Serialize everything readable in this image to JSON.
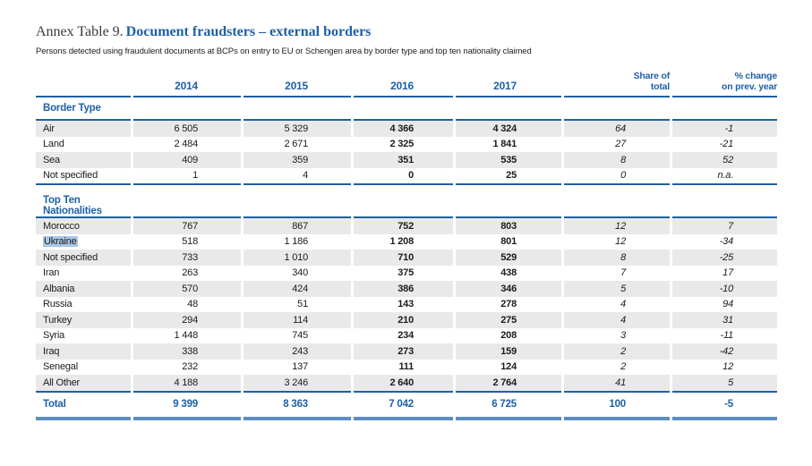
{
  "header": {
    "title_prefix": "Annex Table 9.",
    "title": "Document fraudsters – external borders",
    "subtitle": "Persons detected using fraudulent documents at BCPs on entry to EU or Schengen area by border type and top ten nationality claimed"
  },
  "table": {
    "year_headers": [
      "2014",
      "2015",
      "2016",
      "2017"
    ],
    "share_header": [
      "Share of",
      "total"
    ],
    "change_header": [
      "% change",
      "on prev. year"
    ],
    "columns": [
      "2014",
      "2015",
      "2016",
      "2017",
      "Share of total",
      "% change on prev. year"
    ],
    "sections": [
      {
        "title": "Border Type",
        "rows": [
          {
            "label": "Air",
            "values": [
              "6 505",
              "5 329",
              "4 366",
              "4 324",
              "64",
              "-1"
            ]
          },
          {
            "label": "Land",
            "values": [
              "2 484",
              "2 671",
              "2 325",
              "1 841",
              "27",
              "-21"
            ]
          },
          {
            "label": "Sea",
            "values": [
              "409",
              "359",
              "351",
              "535",
              "8",
              "52"
            ]
          },
          {
            "label": "Not specified",
            "values": [
              "1",
              "4",
              "0",
              "25",
              "0",
              "n.a."
            ]
          }
        ]
      },
      {
        "title": "Top Ten Nationalities",
        "rows": [
          {
            "label": "Morocco",
            "values": [
              "767",
              "867",
              "752",
              "803",
              "12",
              "7"
            ]
          },
          {
            "label": "Ukraine",
            "selected": true,
            "values": [
              "518",
              "1 186",
              "1 208",
              "801",
              "12",
              "-34"
            ]
          },
          {
            "label": "Not specified",
            "values": [
              "733",
              "1 010",
              "710",
              "529",
              "8",
              "-25"
            ]
          },
          {
            "label": "Iran",
            "values": [
              "263",
              "340",
              "375",
              "438",
              "7",
              "17"
            ]
          },
          {
            "label": "Albania",
            "values": [
              "570",
              "424",
              "386",
              "346",
              "5",
              "-10"
            ]
          },
          {
            "label": "Russia",
            "values": [
              "48",
              "51",
              "143",
              "278",
              "4",
              "94"
            ]
          },
          {
            "label": "Turkey",
            "values": [
              "294",
              "114",
              "210",
              "275",
              "4",
              "31"
            ]
          },
          {
            "label": "Syria",
            "values": [
              "1 448",
              "745",
              "234",
              "208",
              "3",
              "-11"
            ]
          },
          {
            "label": "Iraq",
            "values": [
              "338",
              "243",
              "273",
              "159",
              "2",
              "-42"
            ]
          },
          {
            "label": "Senegal",
            "values": [
              "232",
              "137",
              "111",
              "124",
              "2",
              "12"
            ]
          },
          {
            "label": "All Other",
            "values": [
              "4 188",
              "3 246",
              "2 640",
              "2 764",
              "41",
              "5"
            ]
          }
        ]
      }
    ],
    "total": {
      "label": "Total",
      "values": [
        "9 399",
        "8 363",
        "7 042",
        "6 725",
        "100",
        "-5"
      ]
    }
  },
  "colors": {
    "accent_blue": "#1d60a7",
    "bottom_rule_blue": "#5c8ec2",
    "stripe_gray": "#e9e9e9",
    "selection_highlight": "#a9c7e4",
    "text_dark": "#1b1b1b"
  }
}
